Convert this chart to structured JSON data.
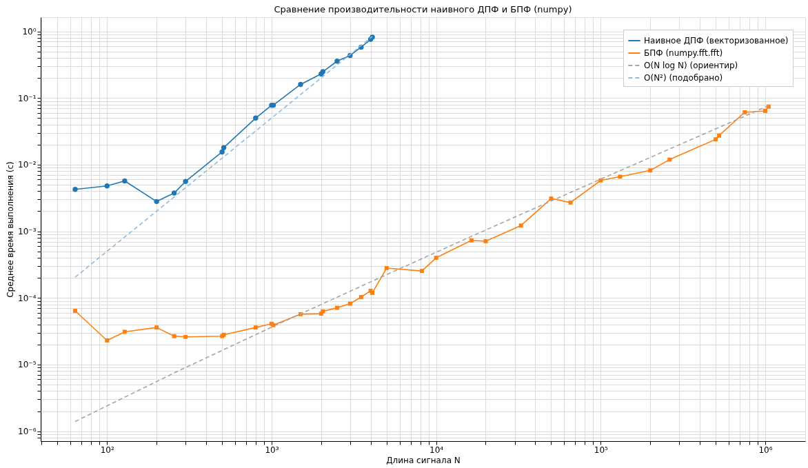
{
  "chart_data": {
    "type": "line",
    "title": "Сравнение производительности наивного ДПФ и БПФ (numpy)",
    "xlabel": "Длина сигнала N",
    "ylabel": "Среднее время выполнения (с)",
    "log": "xy",
    "grid": true,
    "legend": "top right",
    "xlim": [
      39.5,
      1750000
    ],
    "ylim": [
      7.1e-07,
      1.63
    ],
    "xticks": [
      {
        "value": 40,
        "label": null
      },
      {
        "value": 50,
        "label": null
      },
      {
        "value": 60,
        "label": null
      },
      {
        "value": 70,
        "label": null
      },
      {
        "value": 80,
        "label": null
      },
      {
        "value": 90,
        "label": null
      },
      {
        "value": 100,
        "label": "10²"
      },
      {
        "value": 200,
        "label": null
      },
      {
        "value": 300,
        "label": null
      },
      {
        "value": 400,
        "label": null
      },
      {
        "value": 500,
        "label": null
      },
      {
        "value": 600,
        "label": null
      },
      {
        "value": 700,
        "label": null
      },
      {
        "value": 800,
        "label": null
      },
      {
        "value": 900,
        "label": null
      },
      {
        "value": 1000,
        "label": "10³"
      },
      {
        "value": 2000,
        "label": null
      },
      {
        "value": 3000,
        "label": null
      },
      {
        "value": 4000,
        "label": null
      },
      {
        "value": 5000,
        "label": null
      },
      {
        "value": 6000,
        "label": null
      },
      {
        "value": 7000,
        "label": null
      },
      {
        "value": 8000,
        "label": null
      },
      {
        "value": 9000,
        "label": null
      },
      {
        "value": 10000,
        "label": "10⁴"
      },
      {
        "value": 20000,
        "label": null
      },
      {
        "value": 30000,
        "label": null
      },
      {
        "value": 40000,
        "label": null
      },
      {
        "value": 50000,
        "label": null
      },
      {
        "value": 60000,
        "label": null
      },
      {
        "value": 70000,
        "label": null
      },
      {
        "value": 80000,
        "label": null
      },
      {
        "value": 90000,
        "label": null
      },
      {
        "value": 100000,
        "label": "10⁵"
      },
      {
        "value": 200000,
        "label": null
      },
      {
        "value": 300000,
        "label": null
      },
      {
        "value": 400000,
        "label": null
      },
      {
        "value": 500000,
        "label": null
      },
      {
        "value": 600000,
        "label": null
      },
      {
        "value": 700000,
        "label": null
      },
      {
        "value": 800000,
        "label": null
      },
      {
        "value": 900000,
        "label": null
      },
      {
        "value": 1000000,
        "label": "10⁶"
      }
    ],
    "yticks": [
      {
        "value": 8e-07,
        "label": null
      },
      {
        "value": 9e-07,
        "label": null
      },
      {
        "value": 1e-06,
        "label": "10⁻⁶"
      },
      {
        "value": 2e-06,
        "label": null
      },
      {
        "value": 3e-06,
        "label": null
      },
      {
        "value": 4e-06,
        "label": null
      },
      {
        "value": 5e-06,
        "label": null
      },
      {
        "value": 6e-06,
        "label": null
      },
      {
        "value": 7e-06,
        "label": null
      },
      {
        "value": 8e-06,
        "label": null
      },
      {
        "value": 9e-06,
        "label": null
      },
      {
        "value": 1e-05,
        "label": "10⁻⁵"
      },
      {
        "value": 2e-05,
        "label": null
      },
      {
        "value": 3e-05,
        "label": null
      },
      {
        "value": 4e-05,
        "label": null
      },
      {
        "value": 5e-05,
        "label": null
      },
      {
        "value": 6e-05,
        "label": null
      },
      {
        "value": 7e-05,
        "label": null
      },
      {
        "value": 8e-05,
        "label": null
      },
      {
        "value": 9e-05,
        "label": null
      },
      {
        "value": 0.0001,
        "label": "10⁻⁴"
      },
      {
        "value": 0.0002,
        "label": null
      },
      {
        "value": 0.0003,
        "label": null
      },
      {
        "value": 0.0004,
        "label": null
      },
      {
        "value": 0.0005,
        "label": null
      },
      {
        "value": 0.0006,
        "label": null
      },
      {
        "value": 0.0007,
        "label": null
      },
      {
        "value": 0.0008,
        "label": null
      },
      {
        "value": 0.0009,
        "label": null
      },
      {
        "value": 0.001,
        "label": "10⁻³"
      },
      {
        "value": 0.002,
        "label": null
      },
      {
        "value": 0.003,
        "label": null
      },
      {
        "value": 0.004,
        "label": null
      },
      {
        "value": 0.005,
        "label": null
      },
      {
        "value": 0.006,
        "label": null
      },
      {
        "value": 0.007,
        "label": null
      },
      {
        "value": 0.008,
        "label": null
      },
      {
        "value": 0.009,
        "label": null
      },
      {
        "value": 0.01,
        "label": "10⁻²"
      },
      {
        "value": 0.02,
        "label": null
      },
      {
        "value": 0.03,
        "label": null
      },
      {
        "value": 0.04,
        "label": null
      },
      {
        "value": 0.05,
        "label": null
      },
      {
        "value": 0.06,
        "label": null
      },
      {
        "value": 0.07,
        "label": null
      },
      {
        "value": 0.08,
        "label": null
      },
      {
        "value": 0.09,
        "label": null
      },
      {
        "value": 0.1,
        "label": "10⁻¹"
      },
      {
        "value": 0.2,
        "label": null
      },
      {
        "value": 0.3,
        "label": null
      },
      {
        "value": 0.4,
        "label": null
      },
      {
        "value": 0.5,
        "label": null
      },
      {
        "value": 0.6,
        "label": null
      },
      {
        "value": 0.7,
        "label": null
      },
      {
        "value": 0.8,
        "label": null
      },
      {
        "value": 0.9,
        "label": null
      },
      {
        "value": 1,
        "label": "10⁰"
      }
    ],
    "series": [
      {
        "name": "Наивное ДПФ (векторизованное)",
        "color": "#1f77b4",
        "marker": "circle",
        "line_style": "solid",
        "x": [
          64,
          100,
          128,
          200,
          256,
          300,
          500,
          512,
          800,
          1000,
          1024,
          1500,
          2000,
          2048,
          2500,
          3000,
          3500,
          4000,
          4096
        ],
        "values": [
          0.00425,
          0.0048,
          0.0057,
          0.0028,
          0.00375,
          0.0056,
          0.0155,
          0.018,
          0.05,
          0.078,
          0.078,
          0.16,
          0.23,
          0.248,
          0.357,
          0.435,
          0.58,
          0.76,
          0.82
        ]
      },
      {
        "name": "БПФ (numpy.fft.fft)",
        "color": "#ff7f0e",
        "marker": "square",
        "line_style": "solid",
        "x": [
          64,
          100,
          128,
          200,
          256,
          300,
          500,
          512,
          800,
          1000,
          1024,
          1500,
          2000,
          2048,
          2500,
          3000,
          3500,
          4000,
          4096,
          5000,
          8192,
          10000,
          16384,
          20000,
          32768,
          50000,
          65536,
          100000,
          131072,
          200000,
          262144,
          500000,
          524288,
          750000,
          1000000,
          1048576
        ],
        "values": [
          6.4e-05,
          2.3e-05,
          3.1e-05,
          3.6e-05,
          2.67e-05,
          2.6e-05,
          2.67e-05,
          2.8e-05,
          3.6e-05,
          4.1e-05,
          3.9e-05,
          5.7e-05,
          5.8e-05,
          6.3e-05,
          7.1e-05,
          8.2e-05,
          0.000103,
          0.000128,
          0.000119,
          0.00028,
          0.000254,
          0.0004,
          0.00073,
          0.00071,
          0.00122,
          0.0031,
          0.0027,
          0.0058,
          0.0066,
          0.0082,
          0.0119,
          0.024,
          0.0273,
          0.061,
          0.064,
          0.0745
        ]
      },
      {
        "name": "O(N log N) (ориентир)",
        "color": "#a5a5a5",
        "marker": "none",
        "line_style": "dashed",
        "x": [
          64,
          256,
          1024,
          4096,
          16384,
          65536,
          262144,
          1048576
        ],
        "values": [
          1.4e-06,
          7.5e-06,
          3.74e-05,
          0.000179,
          0.00084,
          0.00383,
          0.0172,
          0.0765
        ]
      },
      {
        "name": "O(N²) (подобрано)",
        "color": "#8fbbd9",
        "marker": "none",
        "line_style": "dashed",
        "x": [
          64,
          256,
          1024,
          4096
        ],
        "values": [
          0.000205,
          0.00328,
          0.0525,
          0.84
        ]
      }
    ]
  }
}
